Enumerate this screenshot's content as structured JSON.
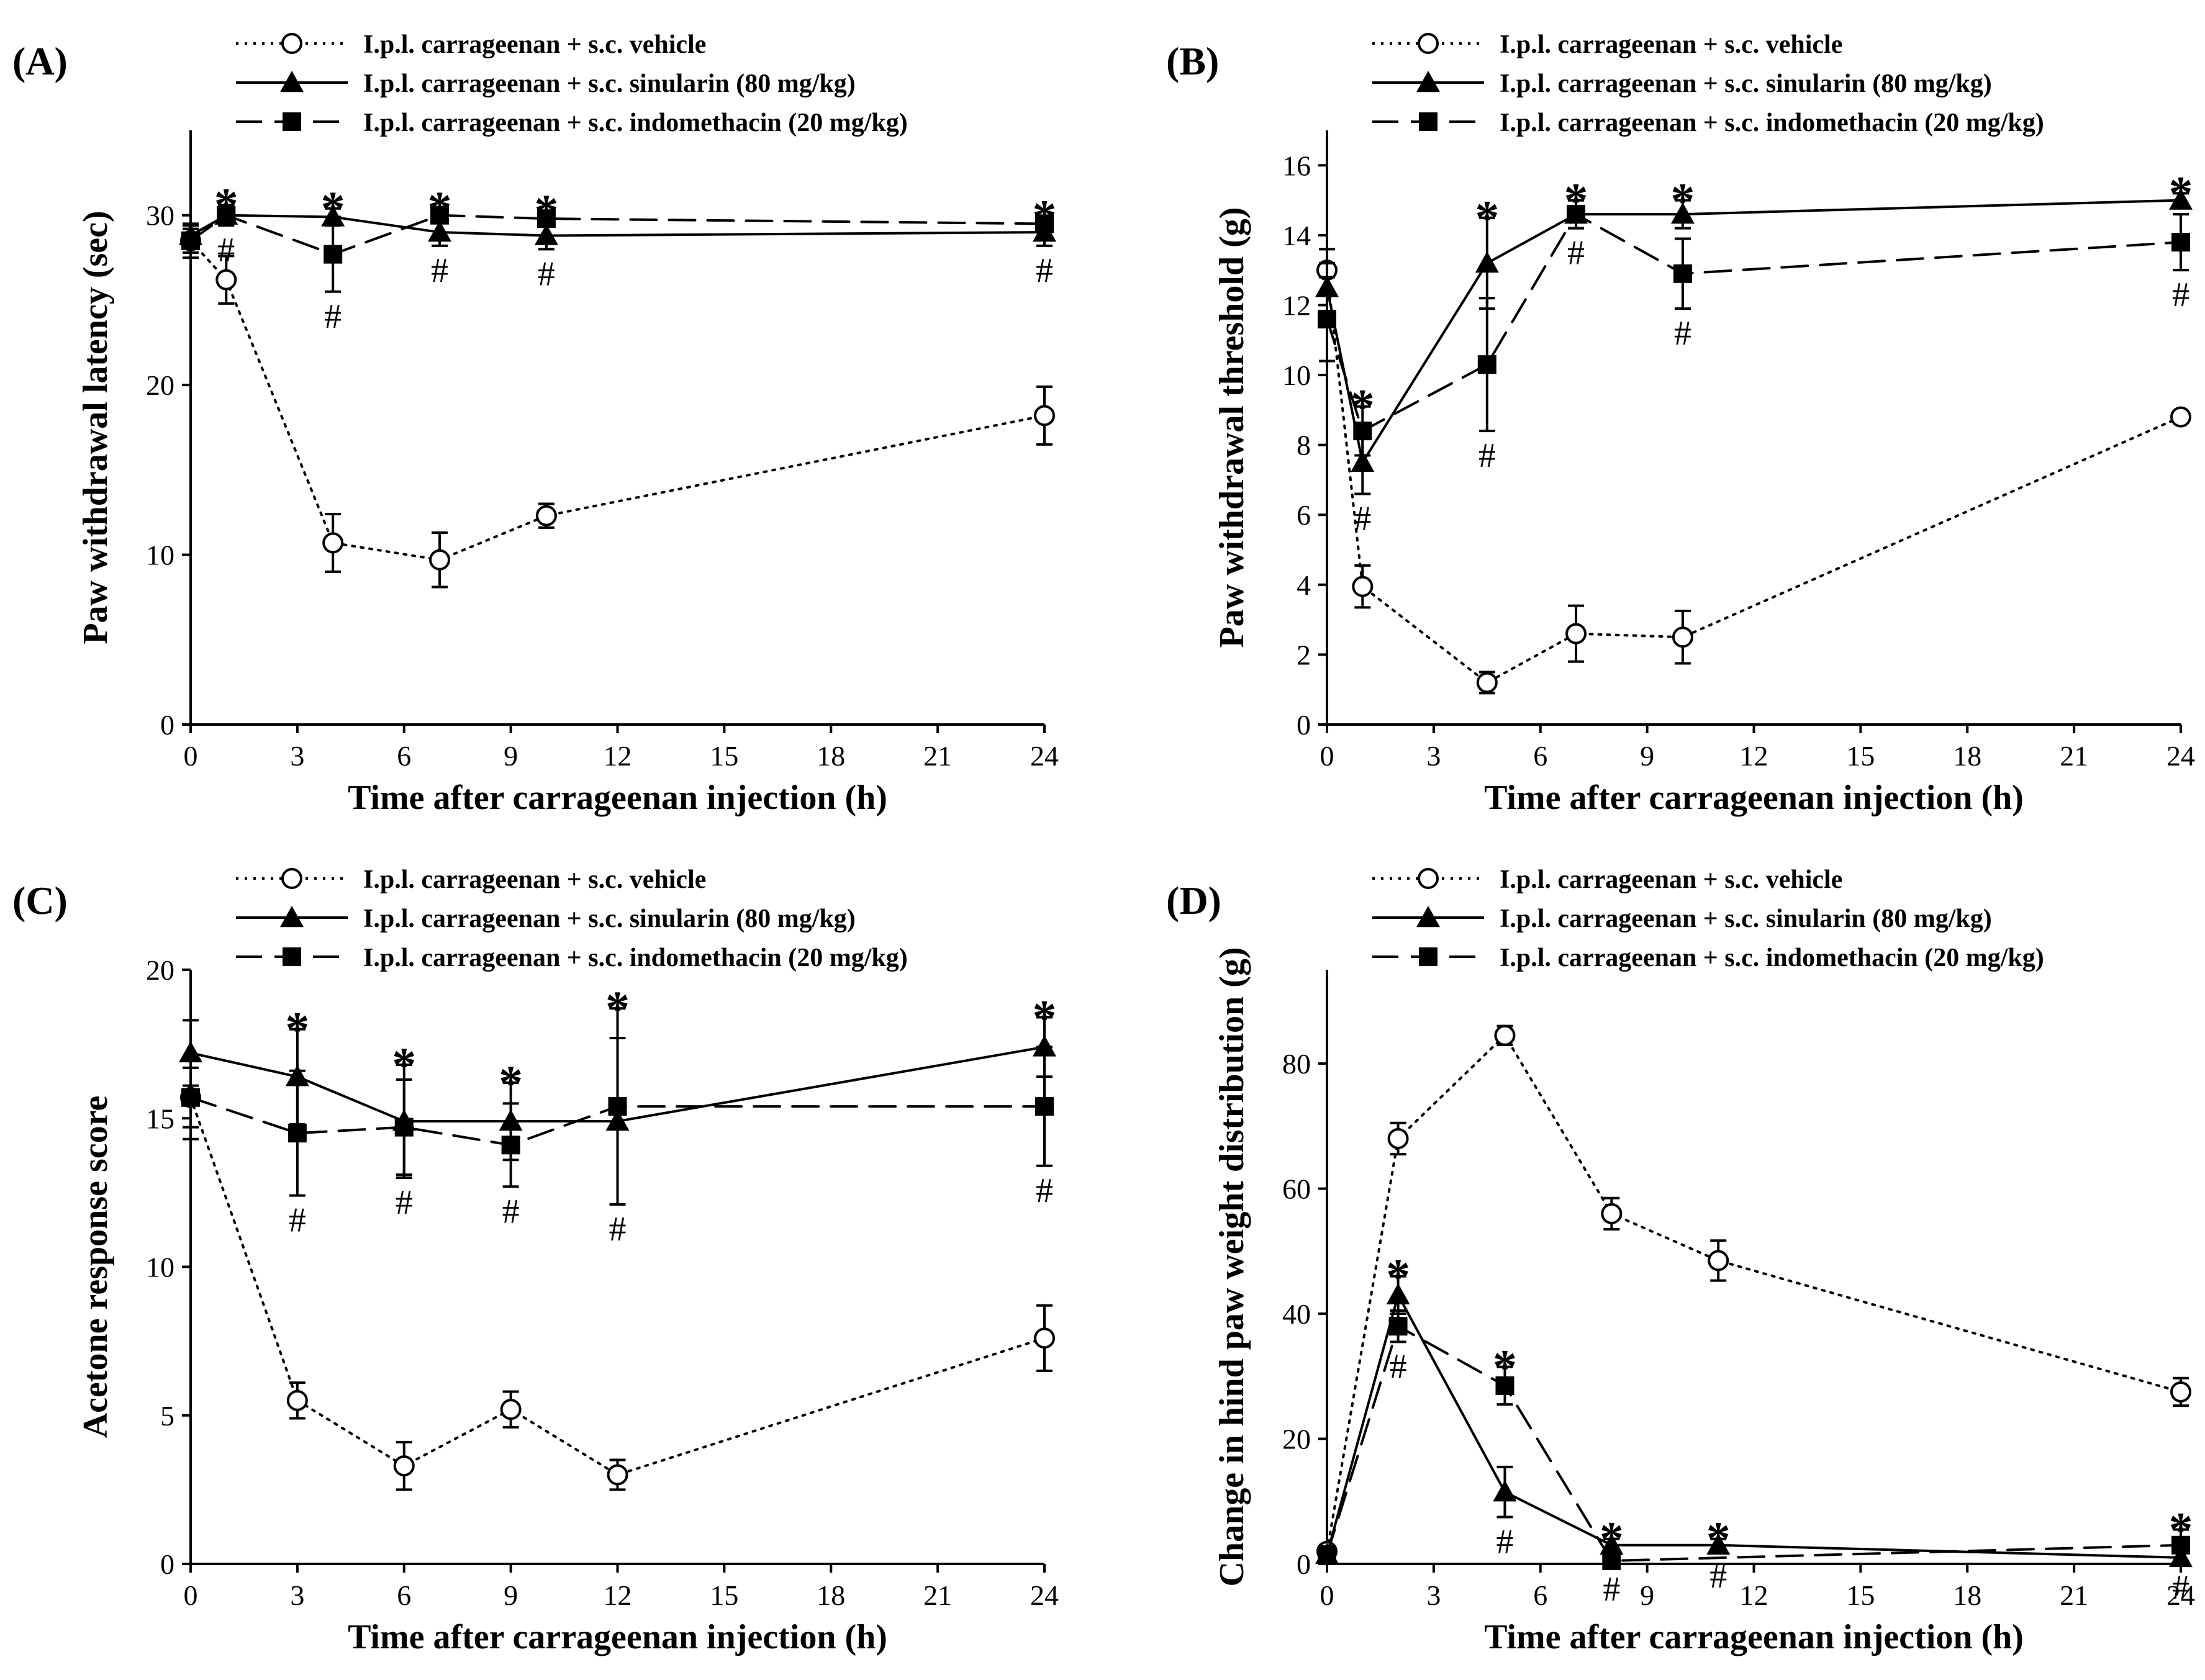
{
  "figure": {
    "background": "#ffffff",
    "ink": "#000000"
  },
  "chart_data": [
    {
      "id": "A",
      "type": "line",
      "label": "(A)",
      "xlabel": "Time after carrageenan injection (h)",
      "ylabel": "Paw withdrawal latency (sec)",
      "xlim": [
        0,
        24
      ],
      "ylim": [
        0,
        35
      ],
      "xticks": [
        0,
        3,
        6,
        9,
        12,
        15,
        18,
        21,
        24
      ],
      "yticks": [
        0,
        10,
        20,
        30
      ],
      "legend": [
        "I.p.l. carrageenan + s.c. vehicle",
        "I.p.l. carrageenan + s.c. sinularin (80 mg/kg)",
        "I.p.l. carrageenan + s.c. indomethacin (20 mg/kg)"
      ],
      "series": [
        {
          "name": "I.p.l. carrageenan + s.c. vehicle",
          "style": "dotted",
          "marker": "open-circle",
          "x": [
            0,
            1,
            4,
            7,
            10,
            24
          ],
          "y": [
            28.5,
            26.2,
            10.7,
            9.7,
            12.3,
            18.2
          ],
          "err": [
            1.0,
            1.4,
            1.7,
            1.6,
            0.7,
            1.7
          ]
        },
        {
          "name": "I.p.l. carrageenan + s.c. sinularin (80 mg/kg)",
          "style": "solid",
          "marker": "triangle",
          "x": [
            0,
            1,
            4,
            7,
            10,
            24
          ],
          "y": [
            28.8,
            30.0,
            29.9,
            29.0,
            28.8,
            29.0
          ],
          "err": [
            0.6,
            0.6,
            0.5,
            0.8,
            0.8,
            0.8
          ]
        },
        {
          "name": "I.p.l. carrageenan + s.c. indomethacin (20 mg/kg)",
          "style": "dashed",
          "marker": "square",
          "x": [
            0,
            1,
            4,
            7,
            10,
            24
          ],
          "y": [
            28.5,
            30.0,
            27.7,
            30.0,
            29.8,
            29.5
          ],
          "err": [
            0.7,
            0.5,
            2.2,
            0.4,
            0.4,
            0.4
          ]
        }
      ],
      "annotations": [
        {
          "x": 1,
          "star": "*",
          "hash": "#"
        },
        {
          "x": 4,
          "star": "*",
          "hash": "#"
        },
        {
          "x": 7,
          "star": "*",
          "hash": "#"
        },
        {
          "x": 10,
          "star": "*",
          "hash": "#"
        },
        {
          "x": 24,
          "star": "*",
          "hash": "#"
        }
      ]
    },
    {
      "id": "B",
      "type": "line",
      "label": "(B)",
      "xlabel": "Time after carrageenan injection (h)",
      "ylabel": "Paw withdrawal threshold (g)",
      "xlim": [
        0,
        24
      ],
      "ylim": [
        0,
        17
      ],
      "xticks": [
        0,
        3,
        6,
        9,
        12,
        15,
        18,
        21,
        24
      ],
      "yticks": [
        0,
        2,
        4,
        6,
        8,
        10,
        12,
        14,
        16
      ],
      "legend": [
        "I.p.l. carrageenan + s.c. vehicle",
        "I.p.l. carrageenan + s.c. sinularin (80 mg/kg)",
        "I.p.l. carrageenan + s.c. indomethacin (20 mg/kg)"
      ],
      "series": [
        {
          "name": "I.p.l. carrageenan + s.c. vehicle",
          "style": "dotted",
          "marker": "open-circle",
          "x": [
            0,
            1,
            4.5,
            7,
            10,
            24
          ],
          "y": [
            13.0,
            3.95,
            1.2,
            2.6,
            2.5,
            8.8
          ],
          "err": [
            0.6,
            0.6,
            0.3,
            0.8,
            0.75,
            0.15
          ]
        },
        {
          "name": "I.p.l. carrageenan + s.c. sinularin (80 mg/kg)",
          "style": "solid",
          "marker": "triangle",
          "x": [
            0,
            1,
            4.5,
            7,
            10,
            24
          ],
          "y": [
            12.5,
            7.5,
            13.2,
            14.6,
            14.6,
            15.0
          ],
          "err": [
            0.7,
            0.9,
            1.3,
            0.4,
            0.4,
            0.2
          ]
        },
        {
          "name": "I.p.l. carrageenan + s.c. indomethacin (20 mg/kg)",
          "style": "dashed",
          "marker": "square",
          "x": [
            0,
            1,
            4.5,
            7,
            10,
            24
          ],
          "y": [
            11.6,
            8.4,
            10.3,
            14.6,
            12.9,
            13.8
          ],
          "err": [
            1.2,
            0.7,
            1.9,
            0.4,
            1.0,
            0.8
          ]
        }
      ],
      "annotations": [
        {
          "x": 1,
          "star": "*",
          "hash": "#"
        },
        {
          "x": 4.5,
          "star": "*",
          "hash": "#"
        },
        {
          "x": 7,
          "star": "*",
          "hash": "#"
        },
        {
          "x": 10,
          "star": "*",
          "hash": "#"
        },
        {
          "x": 24,
          "star": "*",
          "hash": "#"
        }
      ]
    },
    {
      "id": "C",
      "type": "line",
      "label": "(C)",
      "xlabel": "Time after carrageenan injection (h)",
      "ylabel": "Acetone response score",
      "xlim": [
        0,
        24
      ],
      "ylim": [
        0,
        20
      ],
      "xticks": [
        0,
        3,
        6,
        9,
        12,
        15,
        18,
        21,
        24
      ],
      "yticks": [
        0,
        5,
        10,
        15,
        20
      ],
      "legend": [
        "I.p.l. carrageenan + s.c. vehicle",
        "I.p.l. carrageenan + s.c. sinularin (80 mg/kg)",
        "I.p.l. carrageenan + s.c. indomethacin (20 mg/kg)"
      ],
      "series": [
        {
          "name": "I.p.l. carrageenan + s.c. vehicle",
          "style": "dotted",
          "marker": "open-circle",
          "x": [
            0,
            3,
            6,
            9,
            12,
            24
          ],
          "y": [
            15.7,
            5.5,
            3.3,
            5.2,
            3.0,
            7.6
          ],
          "err": [
            1.0,
            0.6,
            0.8,
            0.6,
            0.5,
            1.1
          ]
        },
        {
          "name": "I.p.l. carrageenan + s.c. sinularin (80 mg/kg)",
          "style": "solid",
          "marker": "triangle",
          "x": [
            0,
            3,
            6,
            9,
            12,
            24
          ],
          "y": [
            17.2,
            16.4,
            14.9,
            14.9,
            14.9,
            17.4
          ],
          "err": [
            1.1,
            1.6,
            1.9,
            1.3,
            2.8,
            1.0
          ]
        },
        {
          "name": "I.p.l. carrageenan + s.c. indomethacin (20 mg/kg)",
          "style": "dashed",
          "marker": "square",
          "x": [
            0,
            3,
            6,
            9,
            12,
            24
          ],
          "y": [
            15.7,
            14.5,
            14.7,
            14.1,
            15.4,
            15.4
          ],
          "err": [
            1.4,
            2.1,
            1.6,
            1.4,
            3.3,
            2.0
          ]
        }
      ],
      "annotations": [
        {
          "x": 3,
          "star": "*",
          "hash": "#"
        },
        {
          "x": 6,
          "star": "*",
          "hash": "#"
        },
        {
          "x": 9,
          "star": "*",
          "hash": "#"
        },
        {
          "x": 12,
          "star": "*",
          "hash": "#"
        },
        {
          "x": 24,
          "star": "*",
          "hash": "#"
        }
      ]
    },
    {
      "id": "D",
      "type": "line",
      "label": "(D)",
      "xlabel": "Time after carrageenan injection (h)",
      "ylabel": "Change in hind paw weight distribution (g)",
      "xlim": [
        0,
        24
      ],
      "ylim": [
        0,
        95
      ],
      "xticks": [
        0,
        3,
        6,
        9,
        12,
        15,
        18,
        21,
        24
      ],
      "yticks": [
        0,
        20,
        40,
        60,
        80
      ],
      "legend": [
        "I.p.l. carrageenan + s.c. vehicle",
        "I.p.l. carrageenan + s.c. sinularin (80 mg/kg)",
        "I.p.l. carrageenan + s.c. indomethacin (20 mg/kg)"
      ],
      "series": [
        {
          "name": "I.p.l. carrageenan + s.c. vehicle",
          "style": "dotted",
          "marker": "open-circle",
          "x": [
            0,
            2,
            5,
            8,
            11,
            24
          ],
          "y": [
            2,
            68,
            84.5,
            56,
            48.5,
            27.5
          ],
          "err": [
            1,
            2.5,
            1.5,
            2.5,
            3.2,
            2.2
          ]
        },
        {
          "name": "I.p.l. carrageenan + s.c. sinularin (80 mg/kg)",
          "style": "solid",
          "marker": "triangle",
          "x": [
            0,
            2,
            5,
            8,
            11,
            24
          ],
          "y": [
            1.5,
            43,
            11.5,
            3.0,
            3.0,
            1.0
          ],
          "err": [
            0.8,
            3.0,
            4.0,
            1.0,
            1.0,
            0.8
          ]
        },
        {
          "name": "I.p.l. carrageenan + s.c. indomethacin (20 mg/kg)",
          "style": "dashed",
          "marker": "square",
          "x": [
            0,
            2,
            5,
            8,
            24
          ],
          "y": [
            1.5,
            38,
            28.5,
            0.5,
            3.0
          ],
          "err": [
            0.8,
            2.5,
            3.0,
            0.6,
            2.5
          ]
        }
      ],
      "annotations": [
        {
          "x": 2,
          "star": "*",
          "hash": "#"
        },
        {
          "x": 5,
          "star": "*",
          "hash": "#"
        },
        {
          "x": 8,
          "star": "*",
          "hash": "#"
        },
        {
          "x": 11,
          "star": "*",
          "hash": "#"
        },
        {
          "x": 24,
          "star": "*",
          "hash": "#"
        }
      ]
    }
  ]
}
